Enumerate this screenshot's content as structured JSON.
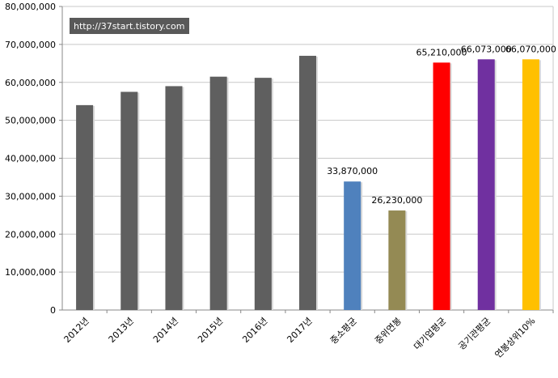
{
  "watermark": "http://37start.tistory.com",
  "chart_data": {
    "type": "bar",
    "title": "",
    "xlabel": "",
    "ylabel": "",
    "ylim": [
      0,
      80000000
    ],
    "yticks": [
      0,
      10000000,
      20000000,
      30000000,
      40000000,
      50000000,
      60000000,
      70000000,
      80000000
    ],
    "ytick_labels": [
      "0",
      "10,000,000",
      "20,000,000",
      "30,000,000",
      "40,000,000",
      "50,000,000",
      "60,000,000",
      "70,000,000",
      "80,000,000"
    ],
    "grid": true,
    "categories": [
      "2012년",
      "2013년",
      "2014년",
      "2015년",
      "2016년",
      "2017년",
      "중소평균",
      "중위연봉",
      "대기업평균",
      "공기관평균",
      "연봉상위10%"
    ],
    "values": [
      54000000,
      57500000,
      59000000,
      61500000,
      61200000,
      67000000,
      33870000,
      26230000,
      65210000,
      66073000,
      66070000
    ],
    "data_labels": [
      "",
      "",
      "",
      "",
      "",
      "",
      "33,870,000",
      "26,230,000",
      "65,210,000",
      "66,073,000",
      "66,070,000"
    ],
    "colors": [
      "#5f5f5f",
      "#5f5f5f",
      "#5f5f5f",
      "#5f5f5f",
      "#5f5f5f",
      "#5f5f5f",
      "#4f81bd",
      "#948a54",
      "#ff0000",
      "#7030a0",
      "#ffc000"
    ]
  }
}
